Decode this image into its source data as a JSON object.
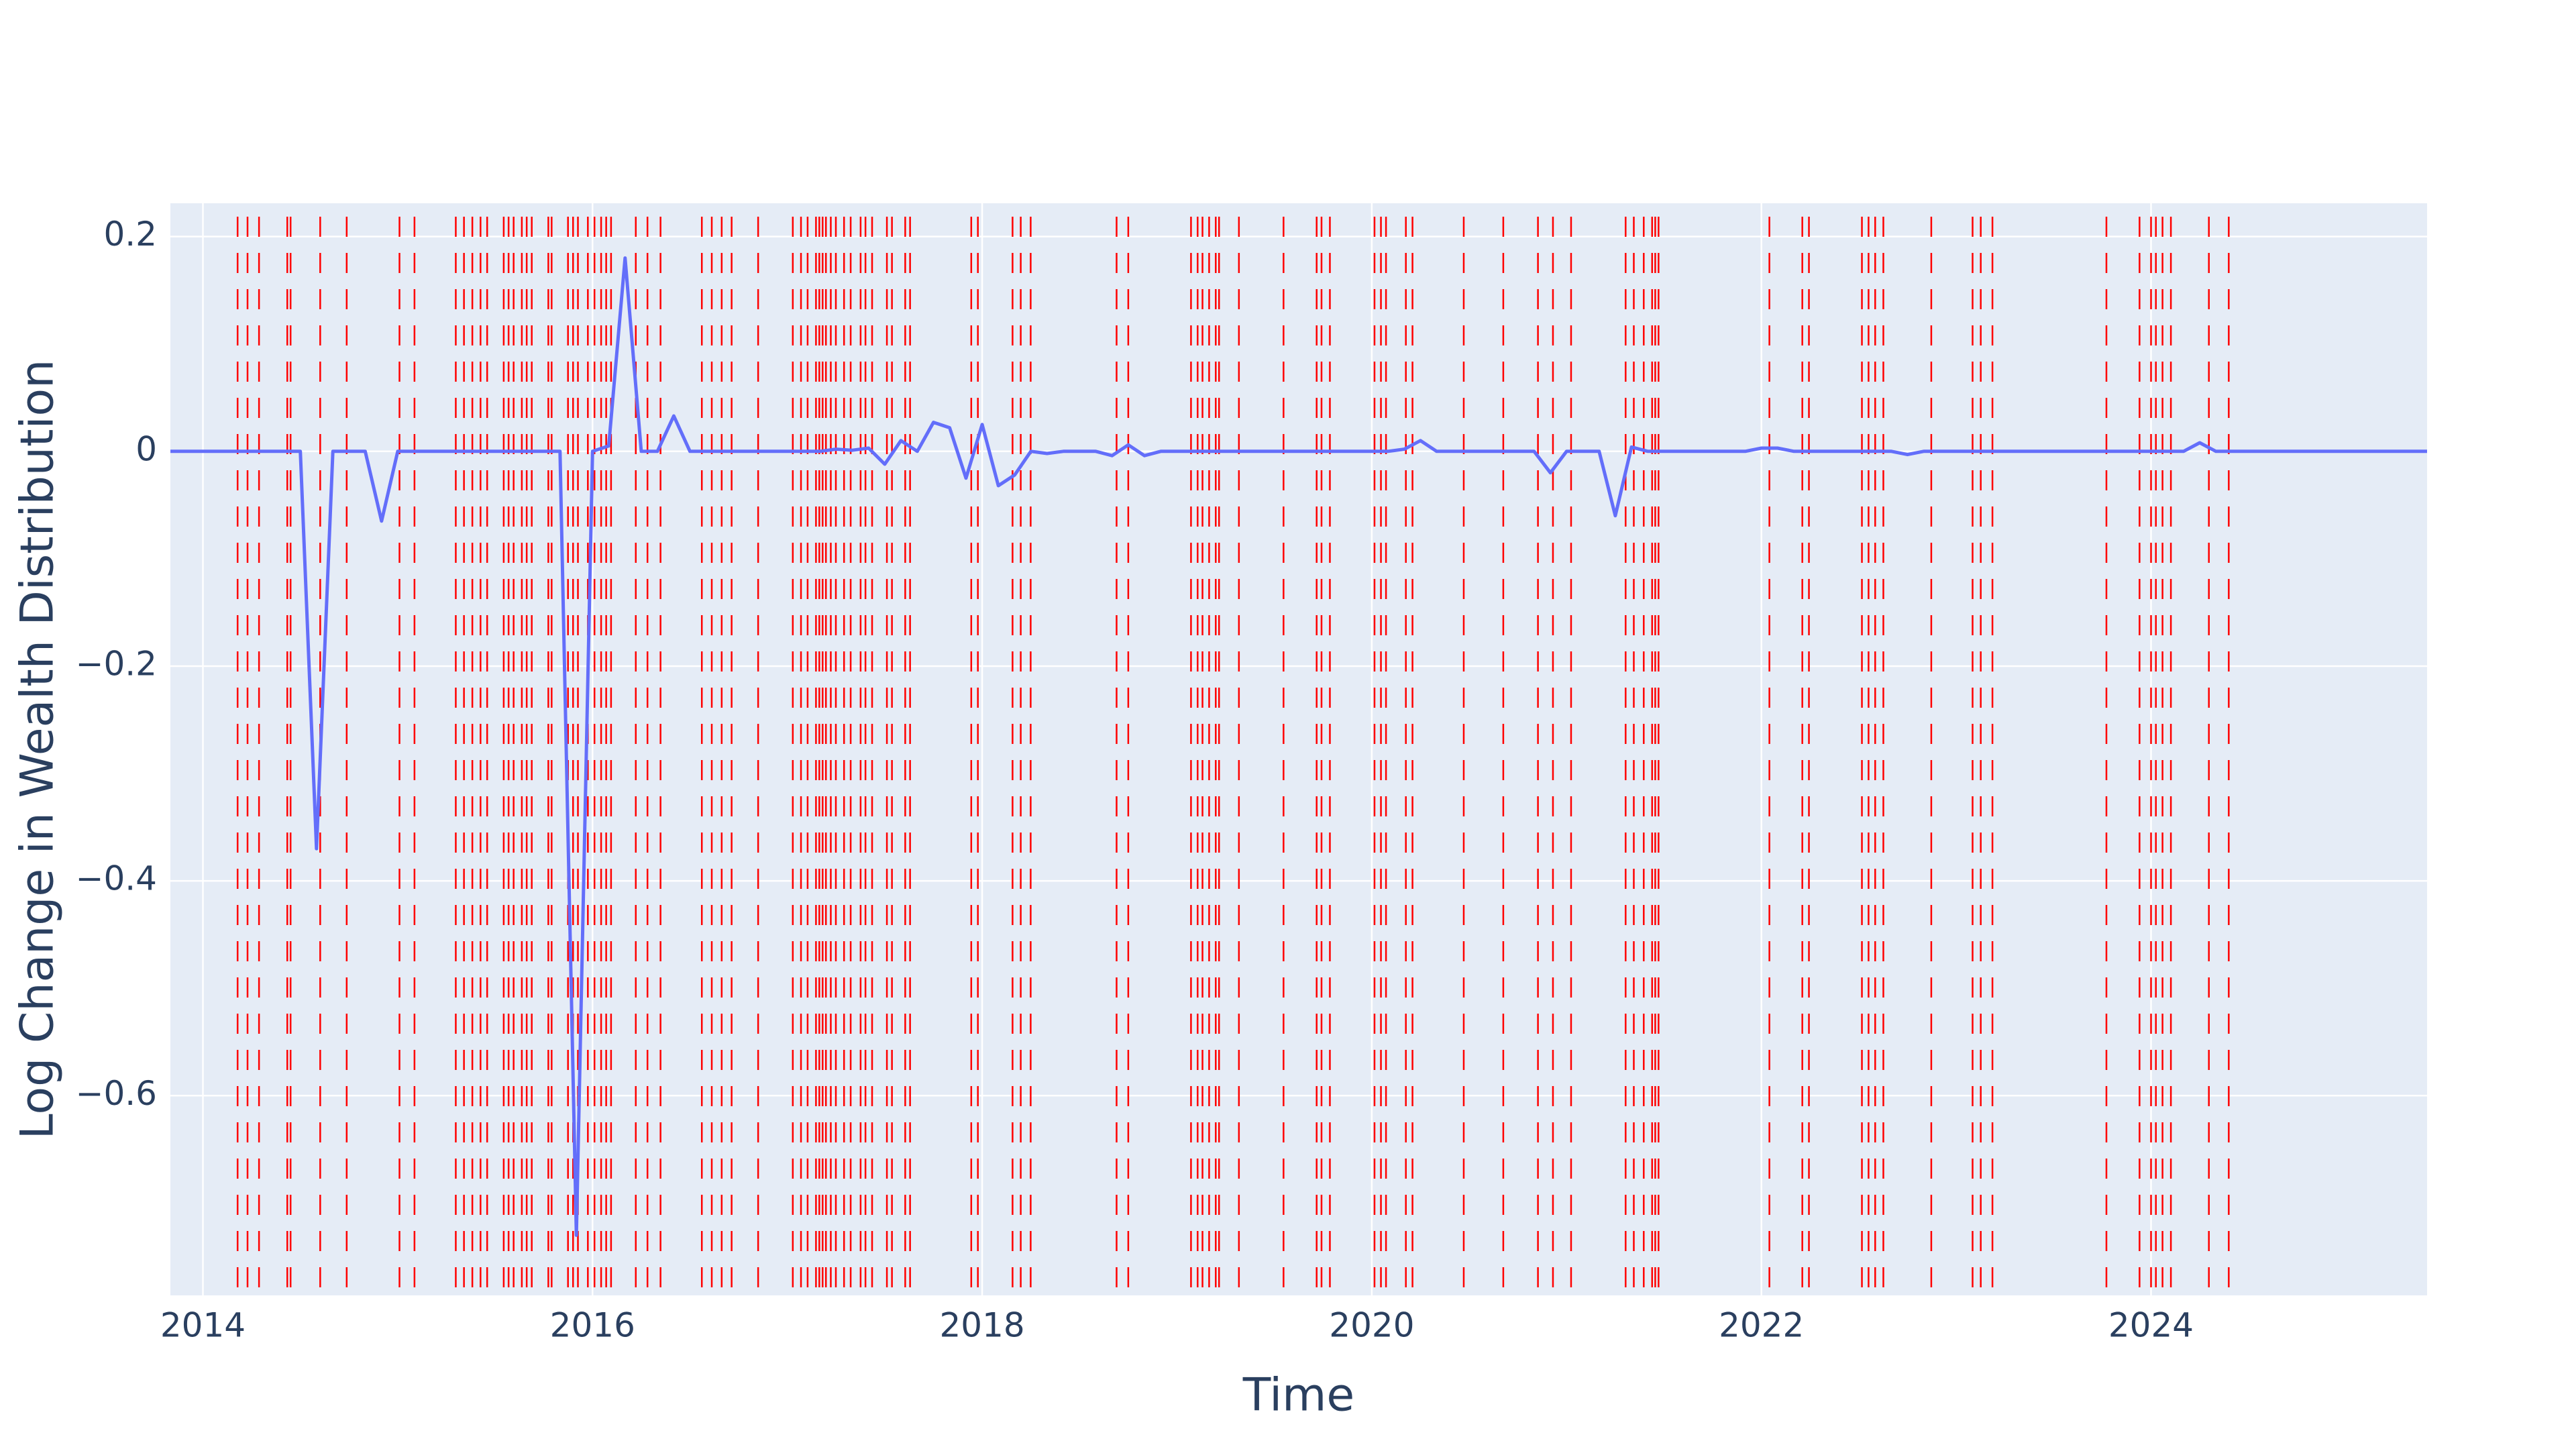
{
  "chart_data": {
    "type": "line",
    "x_label": "Time",
    "y_label": "Log Change in Wealth Distribution",
    "x": [
      2013.833,
      2013.917,
      2014.0,
      2014.083,
      2014.167,
      2014.25,
      2014.333,
      2014.417,
      2014.5,
      2014.583,
      2014.667,
      2014.75,
      2014.833,
      2014.917,
      2015.0,
      2015.083,
      2015.167,
      2015.25,
      2015.333,
      2015.417,
      2015.5,
      2015.583,
      2015.667,
      2015.75,
      2015.833,
      2015.917,
      2016.0,
      2016.083,
      2016.167,
      2016.25,
      2016.333,
      2016.417,
      2016.5,
      2016.583,
      2016.667,
      2016.75,
      2016.833,
      2016.917,
      2017.0,
      2017.083,
      2017.167,
      2017.25,
      2017.333,
      2017.417,
      2017.5,
      2017.583,
      2017.667,
      2017.75,
      2017.833,
      2017.917,
      2018.0,
      2018.083,
      2018.167,
      2018.25,
      2018.333,
      2018.417,
      2018.5,
      2018.583,
      2018.667,
      2018.75,
      2018.833,
      2018.917,
      2019.0,
      2019.083,
      2019.167,
      2019.25,
      2019.333,
      2019.417,
      2019.5,
      2019.583,
      2019.667,
      2019.75,
      2019.833,
      2019.917,
      2020.0,
      2020.083,
      2020.167,
      2020.25,
      2020.333,
      2020.417,
      2020.5,
      2020.583,
      2020.667,
      2020.75,
      2020.833,
      2020.917,
      2021.0,
      2021.083,
      2021.167,
      2021.25,
      2021.333,
      2021.417,
      2021.5,
      2021.583,
      2021.667,
      2021.75,
      2021.833,
      2021.917,
      2022.0,
      2022.083,
      2022.167,
      2022.25,
      2022.333,
      2022.417,
      2022.5,
      2022.583,
      2022.667,
      2022.75,
      2022.833,
      2022.917,
      2023.0,
      2023.083,
      2023.167,
      2023.25,
      2023.333,
      2023.417,
      2023.5,
      2023.583,
      2023.667,
      2023.75,
      2023.833,
      2023.917,
      2024.0,
      2024.083,
      2024.167,
      2024.25,
      2024.333,
      2024.417,
      2024.5,
      2024.583,
      2024.667,
      2024.75,
      2024.833,
      2024.917,
      2025.0,
      2025.083,
      2025.167,
      2025.25,
      2025.333,
      2025.417
    ],
    "series": [
      {
        "color": "#636efa",
        "values": [
          0,
          0,
          0,
          0,
          0,
          0,
          0,
          0,
          0,
          -0.37,
          0,
          0,
          0,
          -0.065,
          0,
          0,
          0,
          0,
          0,
          0,
          0,
          0,
          0,
          0,
          0,
          -0.73,
          0,
          0.005,
          0.18,
          0,
          0,
          0.033,
          0,
          0,
          0,
          0,
          0,
          0,
          0,
          0,
          0,
          0.002,
          0.001,
          0.003,
          -0.012,
          0.01,
          0,
          0.027,
          0.022,
          -0.025,
          0.025,
          -0.032,
          -0.022,
          0,
          -0.002,
          0,
          0,
          0,
          -0.004,
          0.006,
          -0.004,
          0,
          0,
          0,
          0,
          0,
          0,
          0,
          0,
          0,
          0,
          0,
          0,
          0,
          0,
          0,
          0.002,
          0.01,
          0,
          0,
          0,
          0,
          0,
          0,
          0,
          -0.02,
          0,
          0,
          0,
          -0.06,
          0.004,
          0,
          0,
          0,
          0,
          0,
          0,
          0,
          0.003,
          0.003,
          0,
          0,
          0,
          0,
          0,
          0,
          0,
          -0.003,
          0,
          0,
          0,
          0,
          0,
          0,
          0,
          0,
          0,
          0,
          0,
          0,
          0,
          0,
          0,
          0,
          0,
          0.008,
          0,
          0,
          0,
          0,
          0,
          0,
          0,
          0,
          0,
          0,
          0,
          0,
          0,
          0
        ]
      }
    ],
    "events": [
      2014.178,
      2014.229,
      2014.288,
      2014.433,
      2014.45,
      2014.602,
      2014.738,
      2015.009,
      2015.086,
      2015.298,
      2015.34,
      2015.383,
      2015.425,
      2015.459,
      2015.544,
      2015.569,
      2015.595,
      2015.637,
      2015.662,
      2015.688,
      2015.773,
      2015.79,
      2015.874,
      2015.9,
      2015.925,
      2015.976,
      2016.01,
      2016.044,
      2016.07,
      2016.095,
      2016.222,
      2016.282,
      2016.349,
      2016.561,
      2016.612,
      2016.663,
      2016.714,
      2016.85,
      2017.028,
      2017.07,
      2017.104,
      2017.147,
      2017.164,
      2017.181,
      2017.198,
      2017.223,
      2017.249,
      2017.291,
      2017.325,
      2017.376,
      2017.401,
      2017.435,
      2017.511,
      2017.537,
      2017.605,
      2017.63,
      2017.944,
      2017.978,
      2018.156,
      2018.198,
      2018.249,
      2018.69,
      2018.75,
      2019.072,
      2019.106,
      2019.131,
      2019.165,
      2019.199,
      2019.216,
      2019.318,
      2019.547,
      2019.717,
      2019.742,
      2019.785,
      2020.014,
      2020.047,
      2020.073,
      2020.175,
      2020.209,
      2020.472,
      2020.675,
      2020.853,
      2020.93,
      2021.023,
      2021.303,
      2021.345,
      2021.396,
      2021.439,
      2021.455,
      2021.472,
      2022.041,
      2022.21,
      2022.244,
      2022.516,
      2022.55,
      2022.584,
      2022.626,
      2022.872,
      2023.084,
      2023.126,
      2023.186,
      2023.771,
      2023.941,
      2024.0,
      2024.025,
      2024.059,
      2024.102,
      2024.297,
      2024.399
    ],
    "event_color": "#ff0000",
    "event_dash": true,
    "xlim": [
      2013.833,
      2025.417
    ],
    "xticks": [
      2014,
      2016,
      2018,
      2020,
      2022,
      2024
    ],
    "ylim": [
      -0.786,
      0.231
    ],
    "yticks": [
      {
        "value": -0.6,
        "label": "−0.6"
      },
      {
        "value": -0.4,
        "label": "−0.4"
      },
      {
        "value": -0.2,
        "label": "−0.2"
      },
      0,
      0.2
    ],
    "grid": true,
    "background": "#e5ecf6"
  }
}
